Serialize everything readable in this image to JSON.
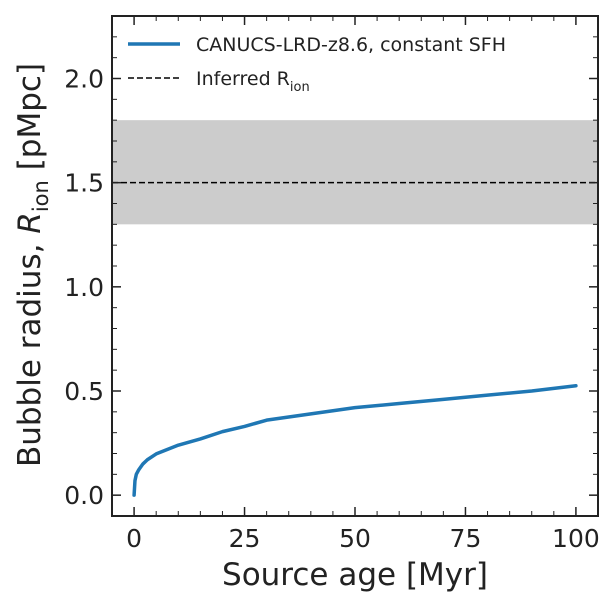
{
  "chart_data": {
    "type": "line",
    "xlabel": "Source age [Myr]",
    "ylabel_main": "Bubble radius, ",
    "ylabel_symbol": "R",
    "ylabel_sub": "ion",
    "ylabel_units": " [pMpc]",
    "xlim": [
      -5,
      105
    ],
    "ylim": [
      -0.1,
      2.3
    ],
    "xticks": [
      0,
      25,
      50,
      75,
      100
    ],
    "xtick_labels": [
      "0",
      "25",
      "50",
      "75",
      "100"
    ],
    "yticks": [
      0.0,
      0.5,
      1.0,
      1.5,
      2.0
    ],
    "ytick_labels": [
      "0.0",
      "0.5",
      "1.0",
      "1.5",
      "2.0"
    ],
    "x_minor_step": 5,
    "y_minor_step": 0.1,
    "legend_position": "top-left",
    "series": [
      {
        "name": "CANUCS-LRD-z8.6, constant SFH",
        "color": "#1f77b4",
        "style": "solid",
        "x": [
          0,
          0.2,
          0.5,
          1,
          2,
          3,
          5,
          7,
          10,
          15,
          20,
          25,
          30,
          40,
          50,
          60,
          70,
          80,
          90,
          100
        ],
        "y": [
          0.0,
          0.07,
          0.1,
          0.12,
          0.15,
          0.17,
          0.198,
          0.215,
          0.24,
          0.27,
          0.305,
          0.33,
          0.36,
          0.39,
          0.42,
          0.44,
          0.46,
          0.48,
          0.5,
          0.525
        ]
      }
    ],
    "reference": {
      "name_main": "Inferred R",
      "name_sub": "ion",
      "value": 1.5,
      "band": [
        1.3,
        1.8
      ],
      "line_color": "#000000",
      "band_color": "#cccccc",
      "style": "dashed"
    }
  }
}
